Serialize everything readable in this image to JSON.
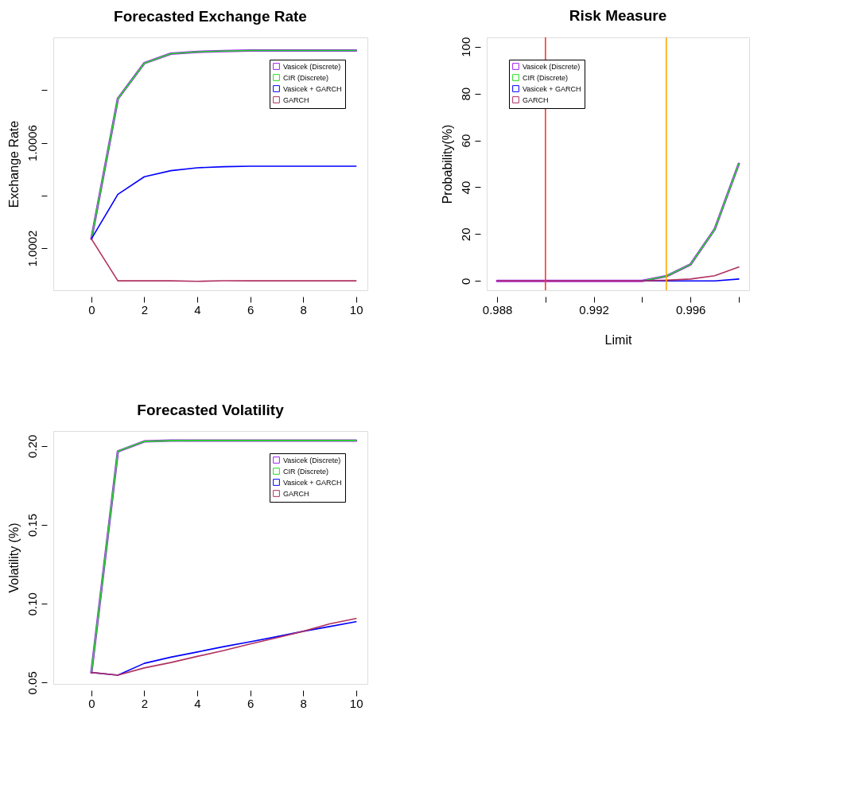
{
  "chart_data": [
    {
      "type": "line",
      "title": "Forecasted Exchange Rate",
      "ylabel": "Exchange Rate",
      "grid": false,
      "legend": "top right",
      "xlim": [
        -1.44,
        10.43
      ],
      "xticks": [
        0,
        2,
        4,
        6,
        8,
        10
      ],
      "ylim": [
        1.00004,
        1.001
      ],
      "yticks": [
        1.0002,
        {
          "value": 1.0004,
          "label": null
        },
        1.0006,
        {
          "value": 1.0008,
          "label": null
        }
      ],
      "x": [
        0,
        1,
        2,
        3,
        4,
        5,
        6,
        7,
        8,
        9,
        10
      ],
      "series": [
        {
          "name": "Vasicek (Discrete)",
          "color": "#a020f0",
          "values": [
            1.000235,
            1.000767,
            1.000902,
            1.000938,
            1.000945,
            1.000948,
            1.00095,
            1.00095,
            1.00095,
            1.00095,
            1.00095
          ]
        },
        {
          "name": "CIR (Discrete)",
          "color": "#22dd22",
          "values": [
            1.000235,
            1.000767,
            1.000902,
            1.000938,
            1.000945,
            1.000948,
            1.00095,
            1.00095,
            1.00095,
            1.00095,
            1.00095
          ]
        },
        {
          "name": "Vasicek + GARCH",
          "color": "#0000ff",
          "values": [
            1.000235,
            1.000404,
            1.000471,
            1.000494,
            1.000505,
            1.000509,
            1.000511,
            1.000511,
            1.000511,
            1.000511,
            1.000511
          ]
        },
        {
          "name": "GARCH",
          "color": "#b03060",
          "values": [
            1.000235,
            1.000076,
            1.000076,
            1.000076,
            1.000074,
            1.000076,
            1.000076,
            1.000076,
            1.000076,
            1.000076,
            1.000076
          ]
        }
      ]
    },
    {
      "type": "line",
      "title": "Risk Measure",
      "xlabel": "Limit",
      "ylabel": "Probability(%)",
      "grid": false,
      "legend": "top left",
      "xlim": [
        0.98757,
        0.99843
      ],
      "xticks": [
        0.988,
        {
          "value": 0.99,
          "label": null
        },
        0.992,
        {
          "value": 0.994,
          "label": null
        },
        0.996,
        {
          "value": 0.998,
          "label": null
        }
      ],
      "ylim": [
        -4,
        104
      ],
      "yticks": [
        0,
        20,
        40,
        60,
        80,
        100
      ],
      "x": [
        0.988,
        0.989,
        0.99,
        0.991,
        0.992,
        0.993,
        0.994,
        0.995,
        0.996,
        0.997,
        0.998
      ],
      "ref_lines": [
        {
          "axis": "x",
          "value": 0.99,
          "label": null,
          "color": "#ff3333"
        },
        {
          "axis": "x",
          "value": 0.995,
          "label": null,
          "color": "#ffa500"
        }
      ],
      "series": [
        {
          "name": "Vasicek (Discrete)",
          "color": "#a020f0",
          "values": [
            0,
            0,
            0,
            0,
            0,
            0,
            0,
            2,
            7,
            22,
            50
          ]
        },
        {
          "name": "CIR (Discrete)",
          "color": "#22dd22",
          "values": [
            null,
            null,
            null,
            null,
            null,
            null,
            0,
            2,
            7,
            22,
            50
          ]
        },
        {
          "name": "Vasicek + GARCH",
          "color": "#0000ff",
          "values": [
            null,
            null,
            null,
            null,
            null,
            null,
            0,
            0,
            0,
            0,
            0.8
          ]
        },
        {
          "name": "GARCH",
          "color": "#b03060",
          "values": [
            0,
            0,
            0,
            0,
            0,
            0,
            0,
            0.3,
            0.8,
            2.2,
            5.9
          ]
        }
      ]
    },
    {
      "type": "line",
      "title": "Forecasted Volatility",
      "ylabel": "Volatility (%)",
      "grid": false,
      "legend": "top right",
      "xlim": [
        -1.44,
        10.43
      ],
      "xticks": [
        0,
        2,
        4,
        6,
        8,
        10
      ],
      "ylim": [
        0.04915,
        0.2095
      ],
      "yticks": [
        0.05,
        {
          "value": 0.1,
          "label": "0.10"
        },
        0.15,
        {
          "value": 0.2,
          "label": "0.20"
        }
      ],
      "x": [
        0,
        1,
        2,
        3,
        4,
        5,
        6,
        7,
        8,
        9,
        10
      ],
      "series": [
        {
          "name": "Vasicek (Discrete)",
          "color": "#a020f0",
          "values": [
            0.0564,
            0.1966,
            0.2029,
            0.2034,
            0.2035,
            0.2035,
            0.2035,
            0.2035,
            0.2035,
            0.2035,
            0.2035
          ]
        },
        {
          "name": "CIR (Discrete)",
          "color": "#22dd22",
          "values": [
            0.0564,
            0.1966,
            0.2029,
            0.2034,
            0.2035,
            0.2035,
            0.2035,
            0.2035,
            0.2035,
            0.2035,
            0.2035
          ]
        },
        {
          "name": "Vasicek + GARCH",
          "color": "#0000ff",
          "values": [
            0.0564,
            0.0547,
            0.0622,
            0.0661,
            0.0694,
            0.0728,
            0.0759,
            0.0791,
            0.0825,
            0.0855,
            0.0886
          ]
        },
        {
          "name": "GARCH",
          "color": "#b03060",
          "values": [
            0.0564,
            0.0547,
            0.0593,
            0.0627,
            0.0666,
            0.0703,
            0.0745,
            0.0784,
            0.0825,
            0.0872,
            0.0906
          ]
        }
      ]
    }
  ]
}
